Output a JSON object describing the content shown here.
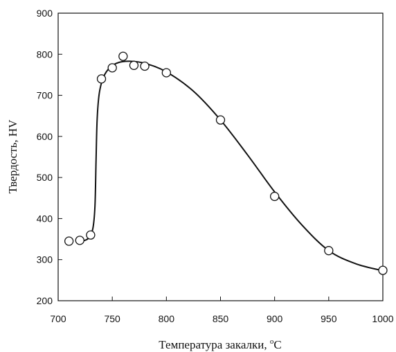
{
  "chart_data": {
    "type": "scatter",
    "xlabel_main": "Температура закалки, ",
    "xlabel_sup": "o",
    "xlabel_unit": "C",
    "ylabel": "Твердость, HV",
    "xlim": [
      700,
      1000
    ],
    "ylim": [
      200,
      900
    ],
    "x_ticks": [
      700,
      750,
      800,
      850,
      900,
      950,
      1000
    ],
    "y_ticks": [
      200,
      300,
      400,
      500,
      600,
      700,
      800,
      900
    ],
    "grid": false,
    "legend": "none",
    "points": [
      {
        "x": 710,
        "y": 345
      },
      {
        "x": 720,
        "y": 347
      },
      {
        "x": 730,
        "y": 360
      },
      {
        "x": 740,
        "y": 740
      },
      {
        "x": 750,
        "y": 767
      },
      {
        "x": 760,
        "y": 795
      },
      {
        "x": 770,
        "y": 773
      },
      {
        "x": 780,
        "y": 771
      },
      {
        "x": 800,
        "y": 755
      },
      {
        "x": 850,
        "y": 640
      },
      {
        "x": 900,
        "y": 454
      },
      {
        "x": 950,
        "y": 322
      },
      {
        "x": 1000,
        "y": 274
      }
    ],
    "fit_curve": [
      {
        "x": 722,
        "y": 345
      },
      {
        "x": 728,
        "y": 352
      },
      {
        "x": 732,
        "y": 375
      },
      {
        "x": 734,
        "y": 430
      },
      {
        "x": 735,
        "y": 540
      },
      {
        "x": 736,
        "y": 640
      },
      {
        "x": 738,
        "y": 705
      },
      {
        "x": 742,
        "y": 745
      },
      {
        "x": 748,
        "y": 768
      },
      {
        "x": 756,
        "y": 780
      },
      {
        "x": 766,
        "y": 783
      },
      {
        "x": 780,
        "y": 778
      },
      {
        "x": 800,
        "y": 757
      },
      {
        "x": 825,
        "y": 710
      },
      {
        "x": 850,
        "y": 640
      },
      {
        "x": 875,
        "y": 555
      },
      {
        "x": 900,
        "y": 465
      },
      {
        "x": 925,
        "y": 385
      },
      {
        "x": 950,
        "y": 322
      },
      {
        "x": 975,
        "y": 290
      },
      {
        "x": 1000,
        "y": 273
      }
    ],
    "colors": {
      "line": "#111111",
      "marker_fill": "#ffffff",
      "marker_stroke": "#111111"
    }
  }
}
